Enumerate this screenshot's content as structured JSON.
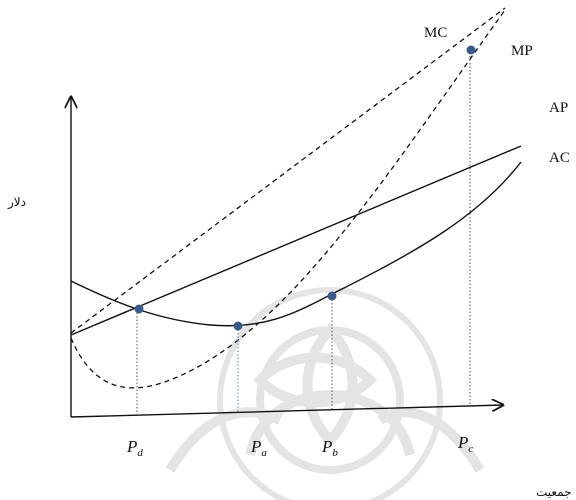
{
  "watermark": {
    "description_icon": "ornament-watermark-icon",
    "color": "#d9d9d9"
  },
  "axes": {
    "y_label": "دلار",
    "x_label": "جمعیت"
  },
  "curves": {
    "mc": {
      "label": "MC",
      "style": "dashed"
    },
    "mp": {
      "label": "MP",
      "style": "dashed"
    },
    "ap": {
      "label": "AP",
      "style": "solid"
    },
    "ac": {
      "label": "AC",
      "style": "solid"
    },
    "parabola_dashed": {
      "style": "dashed"
    }
  },
  "points": [
    {
      "id": "d",
      "base": "P",
      "sub": "d"
    },
    {
      "id": "a",
      "base": "P",
      "sub": "a"
    },
    {
      "id": "b",
      "base": "P",
      "sub": "b"
    },
    {
      "id": "c",
      "base": "P",
      "sub": "c"
    }
  ],
  "colors": {
    "line": "#111111",
    "marker": "#3a5a8c",
    "dropline_a": "#5b7fbf"
  }
}
